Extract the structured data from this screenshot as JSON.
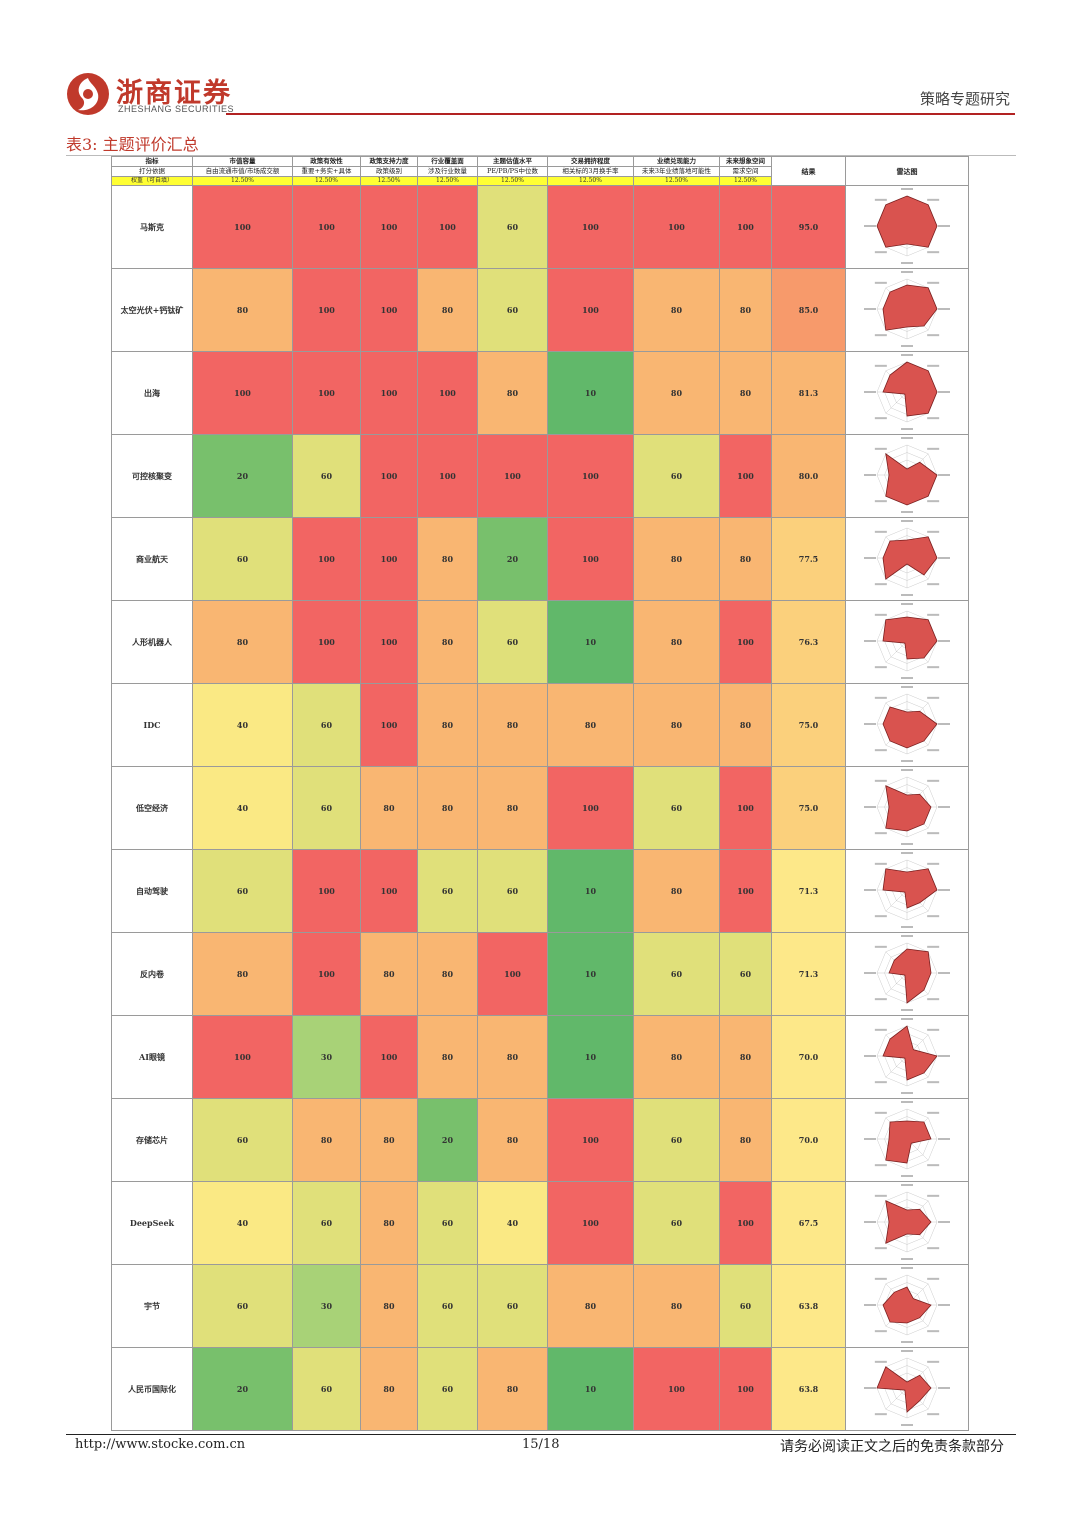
{
  "header": {
    "logo_cn": "浙商证券",
    "logo_en": "ZHESHANG SECURITIES",
    "report_type": "策略专题研究",
    "brand_color": "#c0392b"
  },
  "table": {
    "title": "表3:  主题评价汇总",
    "row_headers": [
      "指标",
      "打分依据",
      "权重（可自填）"
    ],
    "score_header": "结果",
    "radar_header": "雷达图",
    "criteria": [
      {
        "name": "市值容量",
        "basis": "自由流通市值/市场成交额",
        "weight": "12.50%"
      },
      {
        "name": "政策有效性",
        "basis": "重要+务实+具体",
        "weight": "12.50%"
      },
      {
        "name": "政策支持力度",
        "basis": "政策级别",
        "weight": "12.50%"
      },
      {
        "name": "行业覆盖面",
        "basis": "涉及行业数量",
        "weight": "12.50%"
      },
      {
        "name": "主题估值水平",
        "basis": "PE/PB/PS中位数",
        "weight": "12.50%"
      },
      {
        "name": "交易拥挤程度",
        "basis": "相关标的3月换手率",
        "weight": "12.50%"
      },
      {
        "name": "业绩兑现能力",
        "basis": "未来3年业绩落地可能性",
        "weight": "12.50%"
      },
      {
        "name": "未来想象空间",
        "basis": "需求空间",
        "weight": "12.50%"
      }
    ],
    "rows": [
      {
        "name": "马斯克",
        "values": [
          "100",
          "100",
          "100",
          "100",
          "60",
          "100",
          "100",
          "100"
        ],
        "score": "95.0"
      },
      {
        "name": "太空光伏+钙钛矿",
        "values": [
          "80",
          "100",
          "100",
          "80",
          "60",
          "100",
          "80",
          "80"
        ],
        "score": "85.0"
      },
      {
        "name": "出海",
        "values": [
          "100",
          "100",
          "100",
          "100",
          "80",
          "10",
          "80",
          "80"
        ],
        "score": "81.3"
      },
      {
        "name": "可控核聚变",
        "values": [
          "20",
          "60",
          "100",
          "100",
          "100",
          "100",
          "60",
          "100"
        ],
        "score": "80.0"
      },
      {
        "name": "商业航天",
        "values": [
          "60",
          "100",
          "100",
          "80",
          "20",
          "100",
          "80",
          "80"
        ],
        "score": "77.5"
      },
      {
        "name": "人形机器人",
        "values": [
          "80",
          "100",
          "100",
          "80",
          "60",
          "10",
          "80",
          "100"
        ],
        "score": "76.3"
      },
      {
        "name": "IDC",
        "values": [
          "40",
          "60",
          "100",
          "80",
          "80",
          "80",
          "80",
          "80"
        ],
        "score": "75.0"
      },
      {
        "name": "低空经济",
        "values": [
          "40",
          "60",
          "80",
          "80",
          "80",
          "100",
          "60",
          "100"
        ],
        "score": "75.0"
      },
      {
        "name": "自动驾驶",
        "values": [
          "60",
          "100",
          "100",
          "60",
          "60",
          "10",
          "80",
          "100"
        ],
        "score": "71.3"
      },
      {
        "name": "反内卷",
        "values": [
          "80",
          "100",
          "80",
          "80",
          "100",
          "10",
          "60",
          "60"
        ],
        "score": "71.3"
      },
      {
        "name": "AI眼镜",
        "values": [
          "100",
          "30",
          "100",
          "80",
          "80",
          "10",
          "80",
          "80"
        ],
        "score": "70.0"
      },
      {
        "name": "存储芯片",
        "values": [
          "60",
          "80",
          "80",
          "20",
          "80",
          "100",
          "60",
          "80"
        ],
        "score": "70.0"
      },
      {
        "name": "DeepSeek",
        "values": [
          "40",
          "60",
          "80",
          "60",
          "40",
          "100",
          "60",
          "100"
        ],
        "score": "67.5"
      },
      {
        "name": "宇节",
        "values": [
          "60",
          "30",
          "80",
          "60",
          "60",
          "80",
          "80",
          "60"
        ],
        "score": "63.8"
      },
      {
        "name": "人民币国际化",
        "values": [
          "20",
          "60",
          "80",
          "60",
          "80",
          "10",
          "100",
          "100"
        ],
        "score": "63.8"
      }
    ],
    "radar_colors": {
      "fill": "#d9534f",
      "stroke": "#7a1f1f",
      "grid": "#cccccc"
    },
    "value_colors": {
      "100": "#f26563",
      "80": "#f9b672",
      "60": "#e0e07a",
      "40": "#fae984",
      "30": "#a8d277",
      "20": "#78c06c",
      "10": "#61b86a"
    }
  },
  "footer": {
    "url": "http://www.stocke.com.cn",
    "page": "15/18",
    "disclaimer": "请务必阅读正文之后的免责条款部分"
  }
}
